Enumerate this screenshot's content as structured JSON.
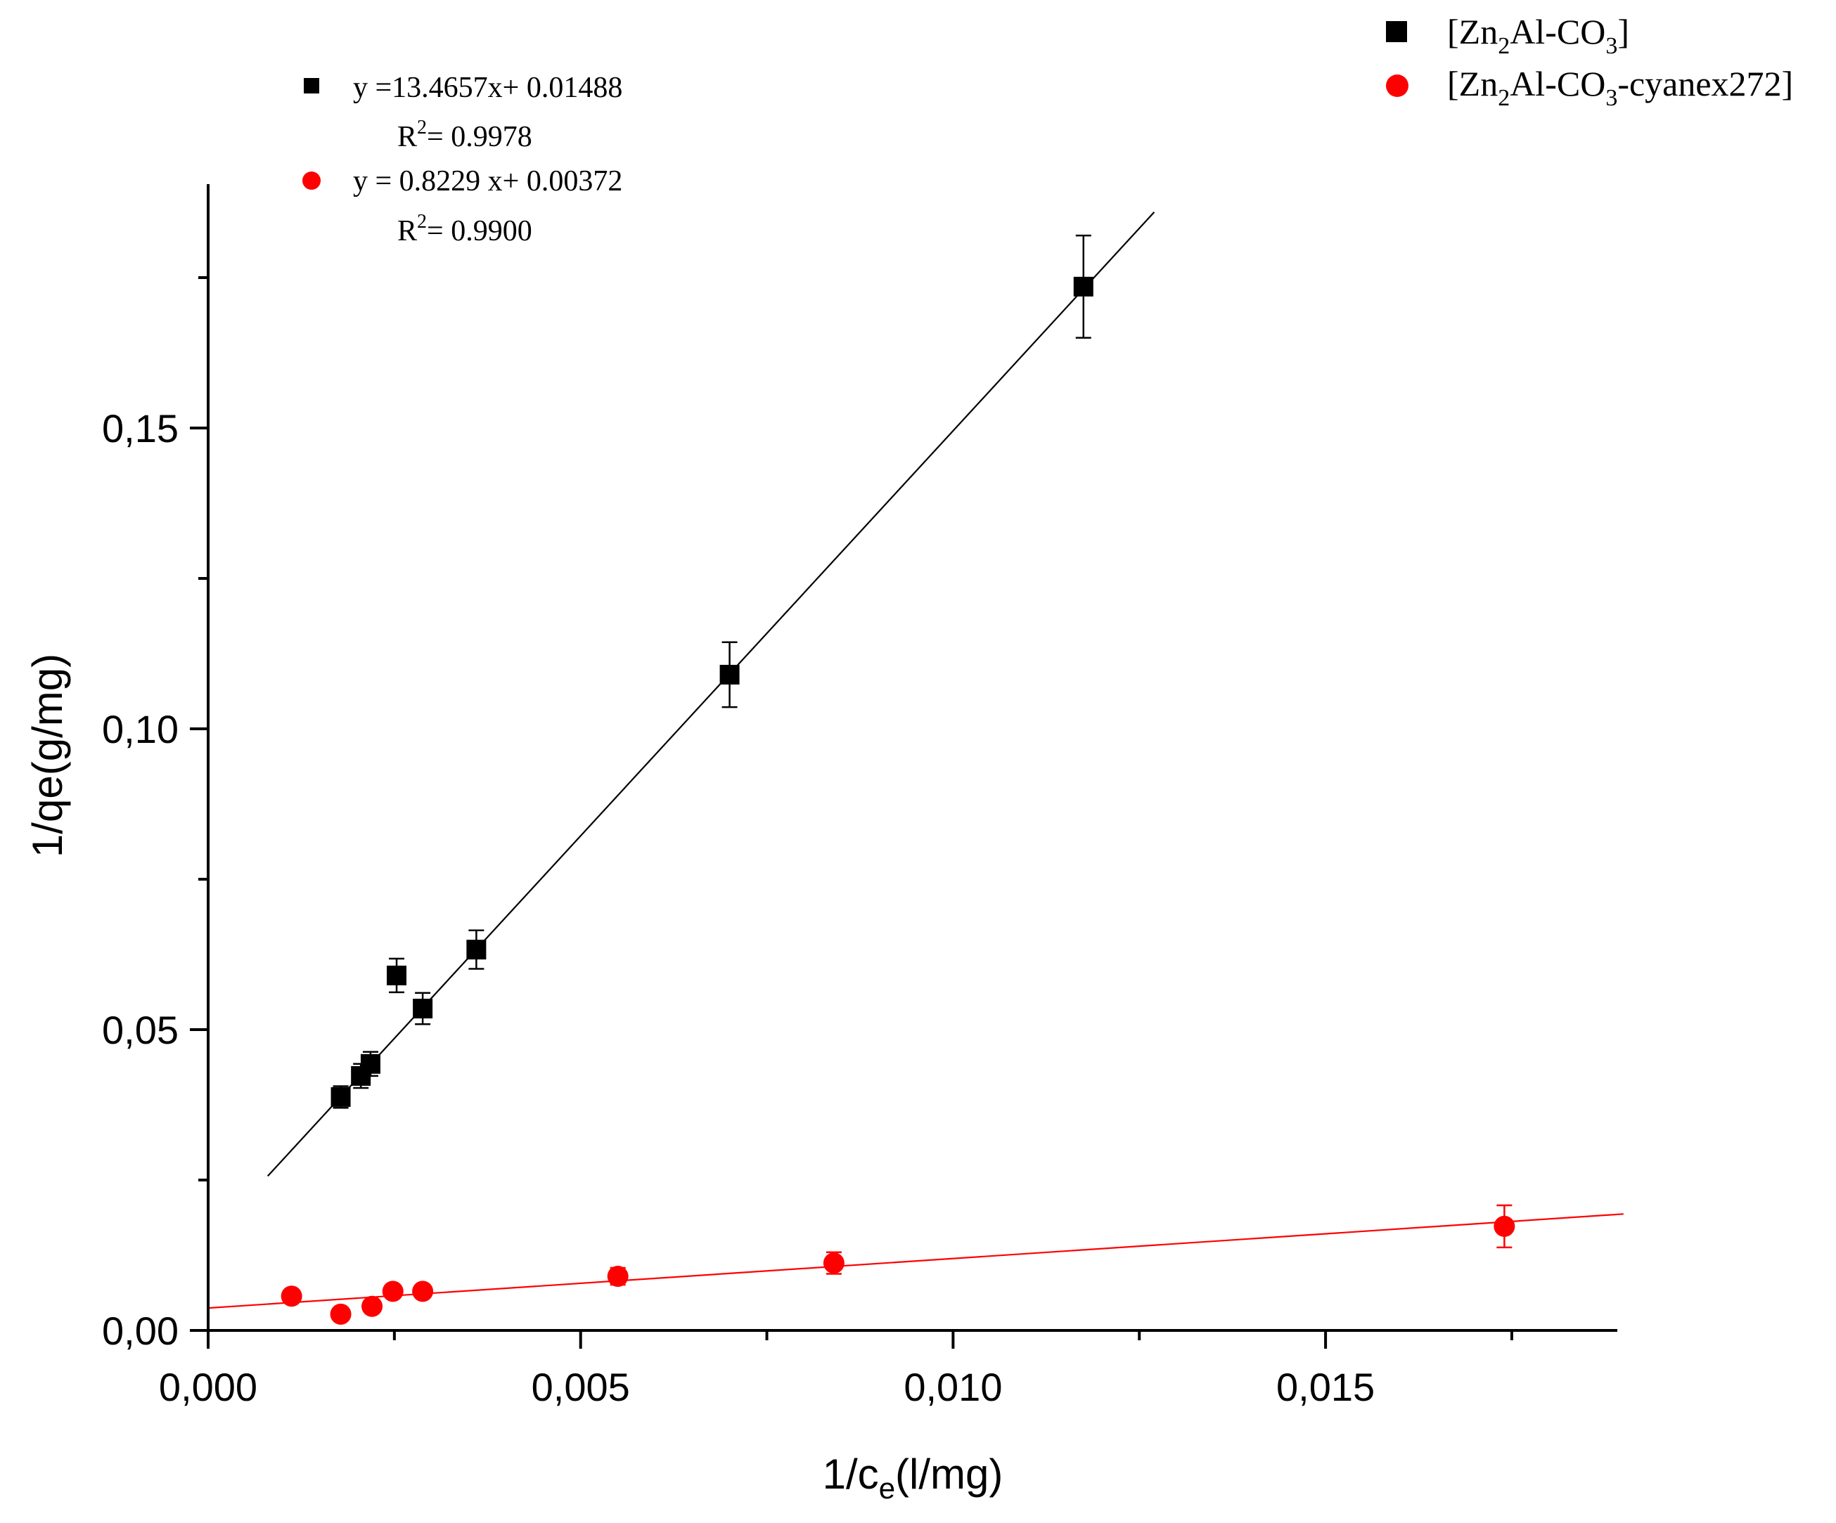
{
  "chart_data": {
    "type": "scatter",
    "title": "",
    "xlabel": {
      "main": "1/c",
      "sub": "e",
      "rest": "(l/mg)"
    },
    "ylabel": "1/qe(g/mg)",
    "xlim": [
      0,
      0.019
    ],
    "ylim": [
      0,
      0.19
    ],
    "x_ticks": [
      {
        "value": 0.0,
        "label": "0,000"
      },
      {
        "value": 0.005,
        "label": "0,005"
      },
      {
        "value": 0.01,
        "label": "0,010"
      },
      {
        "value": 0.015,
        "label": "0,015"
      }
    ],
    "x_minor_ticks": [
      0.0025,
      0.0075,
      0.0125,
      0.0175
    ],
    "y_ticks": [
      {
        "value": 0.0,
        "label": "0,00"
      },
      {
        "value": 0.05,
        "label": "0,05"
      },
      {
        "value": 0.1,
        "label": "0,10"
      },
      {
        "value": 0.15,
        "label": "0,15"
      }
    ],
    "y_minor_ticks": [
      0.025,
      0.075,
      0.125,
      0.175
    ],
    "legend": {
      "position": "top-right",
      "entries": [
        {
          "series": 0,
          "parts": [
            {
              "t": "[Zn",
              "s": "n"
            },
            {
              "t": "2",
              "s": "sub"
            },
            {
              "t": "Al-CO",
              "s": "n"
            },
            {
              "t": "3",
              "s": "sub"
            },
            {
              "t": "]",
              "s": "n"
            }
          ]
        },
        {
          "series": 1,
          "parts": [
            {
              "t": "[Zn",
              "s": "n"
            },
            {
              "t": "2",
              "s": "sub"
            },
            {
              "t": "Al-CO",
              "s": "n"
            },
            {
              "t": "3",
              "s": "sub"
            },
            {
              "t": "-cyanex272]",
              "s": "n"
            }
          ]
        }
      ]
    },
    "series": [
      {
        "name": "[Zn2Al-CO3]",
        "color": "#000000",
        "marker": "square",
        "points": [
          {
            "x": 0.00178,
            "y": 0.0388,
            "err": 0.0018
          },
          {
            "x": 0.00205,
            "y": 0.0423,
            "err": 0.002
          },
          {
            "x": 0.00218,
            "y": 0.0443,
            "err": 0.002
          },
          {
            "x": 0.00253,
            "y": 0.059,
            "err": 0.0028
          },
          {
            "x": 0.00288,
            "y": 0.0535,
            "err": 0.0026
          },
          {
            "x": 0.0036,
            "y": 0.0633,
            "err": 0.0032
          },
          {
            "x": 0.007,
            "y": 0.109,
            "err": 0.0054
          },
          {
            "x": 0.01175,
            "y": 0.1735,
            "err": 0.0085
          }
        ],
        "fit": {
          "slope": 13.4657,
          "intercept": 0.01488,
          "x_from": 0.0008,
          "x_to": 0.0127
        },
        "equation": {
          "eq": "y =13.4657x+ 0.01488",
          "r2_prefix": "R",
          "r2_sup": "2",
          "r2_value": "= 0.9978"
        }
      },
      {
        "name": "[Zn2Al-CO3-cyanex272]",
        "color": "#ff0000",
        "marker": "circle",
        "points": [
          {
            "x": 0.00112,
            "y": 0.0057,
            "err": 0.0008
          },
          {
            "x": 0.00178,
            "y": 0.0027,
            "err": 0.0007
          },
          {
            "x": 0.0022,
            "y": 0.004,
            "err": 0.0008
          },
          {
            "x": 0.00248,
            "y": 0.0065,
            "err": 0.001
          },
          {
            "x": 0.00288,
            "y": 0.0065,
            "err": 0.001
          },
          {
            "x": 0.0055,
            "y": 0.009,
            "err": 0.0014
          },
          {
            "x": 0.0084,
            "y": 0.0112,
            "err": 0.0018
          },
          {
            "x": 0.0174,
            "y": 0.0173,
            "err": 0.0035
          }
        ],
        "fit": {
          "slope": 0.8229,
          "intercept": 0.00372,
          "x_from": 0.0,
          "x_to": 0.019
        },
        "equation": {
          "eq": "y = 0.8229 x+ 0.00372",
          "r2_prefix": "R",
          "r2_sup": "2",
          "r2_value": "= 0.9900"
        }
      }
    ]
  }
}
